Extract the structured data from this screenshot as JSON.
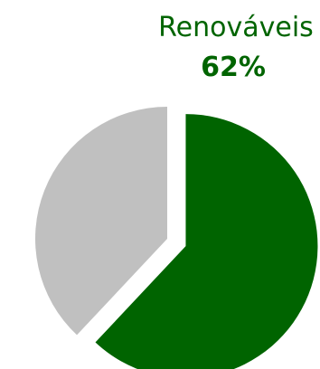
{
  "chart_data": {
    "type": "pie",
    "title": "",
    "slices": [
      {
        "label": "Renováveis",
        "value_label": "62%",
        "value": 62,
        "color": "#006400",
        "exploded": true,
        "show_label": true
      },
      {
        "label": "",
        "value_label": "",
        "value": 38,
        "color": "#c0c0c0",
        "exploded": false,
        "show_label": false
      }
    ],
    "label_color": "#006400",
    "legend": "none"
  }
}
